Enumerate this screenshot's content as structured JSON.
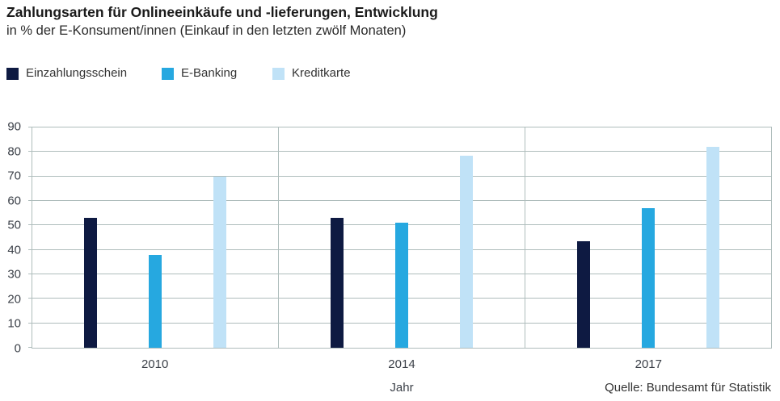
{
  "header": {
    "title": "Zahlungsarten für Onlineeinkäufe und -lieferungen, Entwicklung",
    "subtitle": "in % der E-Konsument/innen (Einkauf in den letzten zwölf Monaten)"
  },
  "footer": {
    "source": "Quelle: Bundesamt für Statistik"
  },
  "colors": {
    "einzahlungsschein": "#0e1a42",
    "e_banking": "#26a8e0",
    "kreditkarte": "#c0e2f7",
    "gridline": "#afbdbc",
    "axis_text": "#3c4149"
  },
  "chart_data": {
    "type": "bar",
    "title": "Zahlungsarten für Onlineeinkäufe und -lieferungen, Entwicklung",
    "subtitle": "in % der E-Konsument/innen (Einkauf in den letzten zwölf Monaten)",
    "categories": [
      "2010",
      "2014",
      "2017"
    ],
    "series": [
      {
        "name": "Einzahlungsschein",
        "color": "#0e1a42",
        "values": [
          53,
          53,
          43.5
        ]
      },
      {
        "name": "E-Banking",
        "color": "#26a8e0",
        "values": [
          38,
          51,
          57
        ]
      },
      {
        "name": "Kreditkarte",
        "color": "#c0e2f7",
        "values": [
          70,
          78.5,
          82
        ]
      }
    ],
    "xlabel": "Jahr",
    "ylabel": "",
    "ylim": [
      0,
      90
    ],
    "ytick_step": 10,
    "yticks": [
      0,
      10,
      20,
      30,
      40,
      50,
      60,
      70,
      80,
      90
    ],
    "grid": true,
    "legend_position": "top-left",
    "source": "Quelle: Bundesamt für Statistik"
  }
}
